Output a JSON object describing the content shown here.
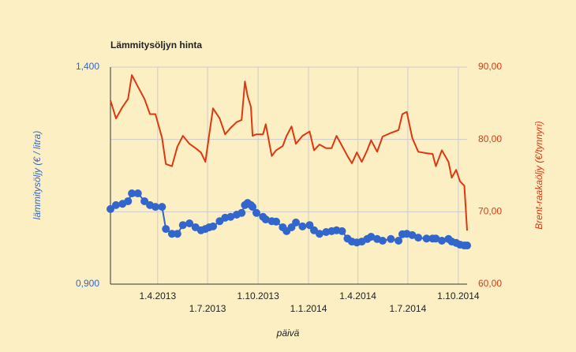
{
  "chart_data": {
    "type": "line",
    "title": "Lämmitysöljyn hinta",
    "xlabel": "päivä",
    "ylabel": "lämmitysöljy (€ / litra)",
    "y2label": "Brent-raakaöljy (€/tynnyri)",
    "grid": true,
    "x": [
      "2013-01-05",
      "2013-01-15",
      "2013-01-27",
      "2013-02-06",
      "2013-02-13",
      "2013-02-24",
      "2013-03-08",
      "2013-03-18",
      "2013-03-28",
      "2013-04-09",
      "2013-04-16",
      "2013-04-27",
      "2013-05-07",
      "2013-05-17",
      "2013-05-29",
      "2013-06-09",
      "2013-06-19",
      "2013-06-27",
      "2013-07-04",
      "2013-07-11",
      "2013-07-23",
      "2013-08-02",
      "2013-08-12",
      "2013-08-23",
      "2013-09-01",
      "2013-09-07",
      "2013-09-12",
      "2013-09-18",
      "2013-09-21",
      "2013-09-28",
      "2013-10-10",
      "2013-10-15",
      "2013-10-26",
      "2013-11-03",
      "2013-11-15",
      "2013-11-22",
      "2013-12-01",
      "2013-12-09",
      "2013-12-21",
      "2014-01-03",
      "2014-01-11",
      "2014-01-21",
      "2014-02-02",
      "2014-02-12",
      "2014-02-21",
      "2014-03-03",
      "2014-03-13",
      "2014-03-21",
      "2014-03-30",
      "2014-04-08",
      "2014-04-18",
      "2014-04-25",
      "2014-05-06",
      "2014-05-16",
      "2014-05-31",
      "2014-06-14",
      "2014-06-21",
      "2014-06-29",
      "2014-07-09",
      "2014-07-20",
      "2014-08-04",
      "2014-08-15",
      "2014-08-21",
      "2014-09-01",
      "2014-09-13",
      "2014-09-19",
      "2014-09-27",
      "2014-10-04",
      "2014-10-12",
      "2014-10-17"
    ],
    "xlim": [
      "2013-01-05",
      "2014-10-17"
    ],
    "xticks": [
      {
        "value": "2013-04-01",
        "label": "1.4.2013"
      },
      {
        "value": "2013-07-01",
        "label": "1.7.2013"
      },
      {
        "value": "2013-10-01",
        "label": "1.10.2013"
      },
      {
        "value": "2014-01-01",
        "label": "1.1.2014"
      },
      {
        "value": "2014-04-01",
        "label": "1.4.2014"
      },
      {
        "value": "2014-07-01",
        "label": "1.7.2014"
      },
      {
        "value": "2014-10-01",
        "label": "1.10.2014"
      }
    ],
    "ylim": [
      0.9,
      1.4
    ],
    "yticks": [
      {
        "value": 0.9,
        "label": "0,900"
      },
      {
        "value": 1.4,
        "label": "1,400"
      }
    ],
    "y2lim": [
      60,
      90
    ],
    "y2ticks": [
      {
        "value": 60,
        "label": "60,00"
      },
      {
        "value": 70,
        "label": "70,00"
      },
      {
        "value": 80,
        "label": "80,00"
      },
      {
        "value": 90,
        "label": "90,00"
      }
    ],
    "series": [
      {
        "color": "#3366cc",
        "marker": true,
        "axis": "y",
        "values": [
          1.073,
          1.082,
          1.085,
          1.091,
          1.109,
          1.109,
          1.091,
          1.082,
          1.078,
          1.078,
          1.027,
          1.016,
          1.016,
          1.036,
          1.04,
          1.031,
          1.024,
          1.027,
          1.031,
          1.033,
          1.045,
          1.053,
          1.055,
          1.06,
          1.064,
          1.082,
          1.087,
          1.082,
          1.078,
          1.064,
          1.055,
          1.049,
          1.045,
          1.044,
          1.031,
          1.022,
          1.031,
          1.042,
          1.033,
          1.036,
          1.024,
          1.016,
          1.02,
          1.022,
          1.024,
          1.022,
          1.005,
          0.998,
          0.996,
          0.998,
          1.004,
          1.009,
          1.004,
          1.0,
          1.004,
          1.0,
          1.015,
          1.016,
          1.013,
          1.007,
          1.005,
          1.005,
          1.005,
          1.0,
          1.004,
          0.998,
          0.995,
          0.991,
          0.989,
          0.989
        ]
      },
      {
        "color": "#dc3912",
        "marker": false,
        "axis": "y2",
        "values": [
          85.4,
          82.9,
          84.5,
          85.6,
          88.9,
          87.3,
          85.6,
          83.5,
          83.5,
          80.2,
          76.6,
          76.3,
          79.0,
          80.5,
          79.4,
          78.8,
          78.2,
          76.9,
          80.7,
          84.3,
          82.9,
          80.7,
          81.6,
          82.4,
          82.7,
          88.0,
          86.0,
          84.5,
          80.5,
          80.7,
          80.7,
          82.1,
          77.7,
          78.5,
          79.1,
          80.5,
          81.8,
          79.4,
          80.5,
          81.1,
          78.5,
          79.3,
          78.8,
          78.8,
          80.5,
          79.1,
          77.7,
          76.7,
          78.2,
          76.9,
          78.5,
          79.9,
          78.3,
          80.4,
          80.9,
          81.3,
          83.5,
          83.8,
          80.2,
          78.3,
          78.1,
          78.0,
          76.3,
          78.5,
          76.9,
          74.7,
          75.8,
          74.2,
          73.6,
          67.4
        ]
      }
    ]
  }
}
